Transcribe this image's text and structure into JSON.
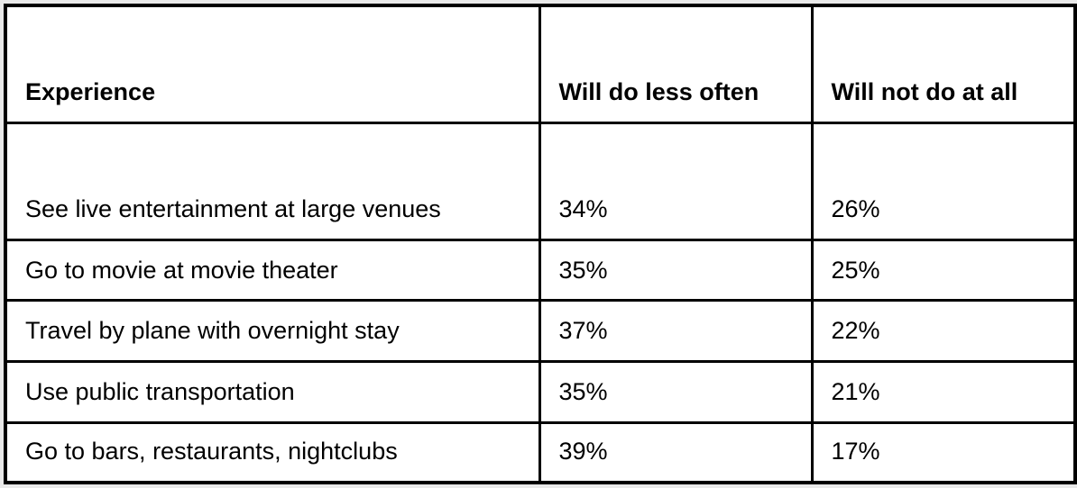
{
  "table": {
    "headers": [
      "Experience",
      "Will do less often",
      "Will not do at all"
    ],
    "rows": [
      [
        "See live entertainment at large venues",
        "34%",
        "26%"
      ],
      [
        "Go to movie at movie theater",
        "35%",
        "25%"
      ],
      [
        "Travel by plane with overnight stay",
        "37%",
        "22%"
      ],
      [
        "Use public transportation",
        "35%",
        "21%"
      ],
      [
        "Go to bars, restaurants, nightclubs",
        "39%",
        "17%"
      ]
    ]
  },
  "chart_data": {
    "type": "table",
    "title": "",
    "columns": [
      "Experience",
      "Will do less often",
      "Will not do at all"
    ],
    "categories": [
      "See live entertainment at large venues",
      "Go to movie at movie theater",
      "Travel by plane with overnight stay",
      "Use public transportation",
      "Go to bars, restaurants, nightclubs"
    ],
    "series": [
      {
        "name": "Will do less often",
        "values": [
          34,
          35,
          37,
          35,
          39
        ],
        "unit": "%"
      },
      {
        "name": "Will not do at all",
        "values": [
          26,
          25,
          22,
          21,
          17
        ],
        "unit": "%"
      }
    ]
  },
  "colors": {
    "page_background": "#e9e9e9",
    "cell_background": "#ffffff",
    "border": "#000000",
    "text": "#000000"
  }
}
